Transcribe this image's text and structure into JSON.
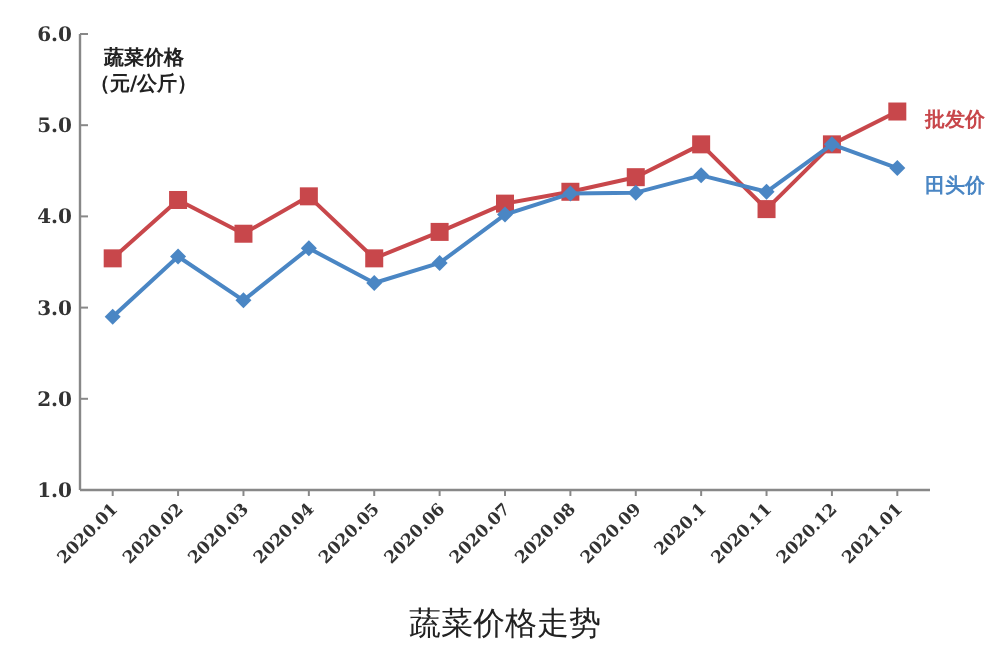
{
  "chart_data": {
    "type": "line",
    "title": "蔬菜价格走势",
    "ylabel": "蔬菜价格（元/公斤）",
    "categories": [
      "2020.01",
      "2020.02",
      "2020.03",
      "2020.04",
      "2020.05",
      "2020.06",
      "2020.07",
      "2020.08",
      "2020.09",
      "2020.1",
      "2020.11",
      "2020.12",
      "2021.01"
    ],
    "series": [
      {
        "name": "批发价",
        "color": "#c8474b",
        "marker": "square",
        "values": [
          3.54,
          4.18,
          3.81,
          4.22,
          3.54,
          3.83,
          4.14,
          4.27,
          4.43,
          4.79,
          4.08,
          4.79,
          5.15
        ]
      },
      {
        "name": "田头价",
        "color": "#4a86c4",
        "marker": "diamond",
        "values": [
          2.9,
          3.56,
          3.08,
          3.65,
          3.27,
          3.49,
          4.02,
          4.25,
          4.26,
          4.45,
          4.27,
          4.79,
          4.53
        ]
      }
    ],
    "ylim": [
      1,
      6
    ],
    "yticks": [
      {
        "value": 1,
        "label": "1.0"
      },
      {
        "value": 2,
        "label": "2.0"
      },
      {
        "value": 3,
        "label": "3.0"
      },
      {
        "value": 4,
        "label": "4.0"
      },
      {
        "value": 5,
        "label": "5.0"
      },
      {
        "value": 6,
        "label": "6.0"
      }
    ],
    "line_style": "solid"
  }
}
